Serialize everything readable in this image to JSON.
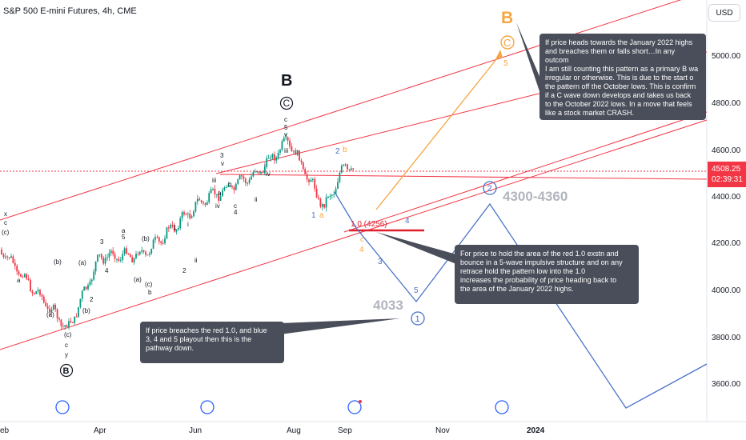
{
  "header": {
    "symbol_title": "S&P 500 E-mini Futures, 4h, CME",
    "currency_button": "USD"
  },
  "price_axis": {
    "ticks": [
      "5000.00",
      "4800.00",
      "4600.00",
      "4400.00",
      "4200.00",
      "4000.00",
      "3800.00",
      "3600.00"
    ]
  },
  "time_axis": {
    "ticks": [
      "eb",
      "Apr",
      "Jun",
      "Aug",
      "Sep",
      "Nov",
      "2024"
    ]
  },
  "last_price": {
    "value": "4508.25",
    "countdown": "02:39:31",
    "color": "#f23645"
  },
  "annotations": {
    "note_top": "If price heads towards the January 2022 highs\nand breaches them or falls short…In any outcom\nI am still counting this pattern as a primary B wa\nirregular or otherwise.  This is due to the start o\nthe pattern off the October lows.  This is confirm\nif a C wave down develops and takes us back\nto the October 2022 lows. In a move that feels\nlike a stock market CRASH.",
    "note_mid": "For price to hold the area of the red 1.0 exstn and\nbounce in a 5-wave impulsive structure and on any\nretrace hold the pattern low into the 1.0\nincreases the probability of price heading back to\nthe area of the January 2022 highs.",
    "note_bot": "If price breaches the red 1.0, and blue\n3, 4 and 5 playout then this is the\npathway down.",
    "fib_label": "1.0 (4256)",
    "target_range": "4300-4360",
    "target_low": "4033"
  },
  "wave_labels": {
    "big_B_black": "B",
    "big_B_orange": "B",
    "circle_C": "C",
    "circle_C_orange": "C",
    "circle_B_low": "B",
    "circle_1_blue": "1",
    "circle_2_blue": "2",
    "orange_5": "5",
    "orange_2": "2",
    "orange_b": "b",
    "blue_1": "1",
    "orange_a": "a",
    "orange_c": "c",
    "orange_4": "4",
    "blue_3": "3",
    "blue_4": "4",
    "blue_5": "5"
  },
  "colors": {
    "channel": "#f23645",
    "blue_path": "#4a72c6",
    "orange_path": "#f7a542",
    "candle_up": "#089981",
    "candle_down": "#f23645"
  },
  "chart_data": {
    "type": "candlestick",
    "title": "S&P 500 E-mini Futures, 4h, CME",
    "y_range": [
      3500,
      5200
    ],
    "last_price": 4508.25,
    "fib_level": {
      "label": "1.0 (4256)",
      "value": 4256
    },
    "targets": [
      "4300-4360",
      "4033"
    ],
    "approx_close_path": [
      {
        "t": "Feb",
        "close": 4180
      },
      {
        "t": "Mar-low",
        "close": 3840
      },
      {
        "t": "Apr",
        "close": 4150
      },
      {
        "t": "May",
        "close": 4160
      },
      {
        "t": "Jun",
        "close": 4380
      },
      {
        "t": "Jul",
        "close": 4500
      },
      {
        "t": "Jul-high",
        "close": 4640
      },
      {
        "t": "Aug-low",
        "close": 4360
      },
      {
        "t": "Sep",
        "close": 4540
      },
      {
        "t": "Sep-last",
        "close": 4508.25
      }
    ]
  }
}
